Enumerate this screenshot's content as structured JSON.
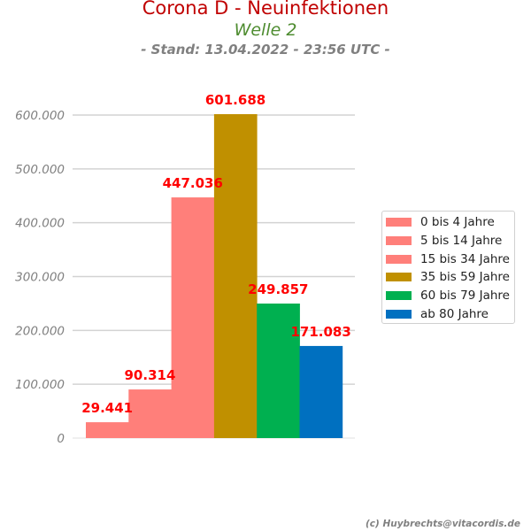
{
  "header": {
    "title": "Corona D - Neuinfektionen",
    "subtitle": "Welle 2",
    "stand": "- Stand: 13.04.2022 - 23:56 UTC -"
  },
  "chart_data": {
    "type": "bar",
    "categories": [
      "0 bis 4 Jahre",
      "5 bis 14 Jahre",
      "15 bis 34 Jahre",
      "35 bis 59 Jahre",
      "60 bis 79 Jahre",
      "ab 80 Jahre"
    ],
    "values": [
      29441,
      90314,
      447036,
      601688,
      249857,
      171083
    ],
    "value_labels": [
      "29.441",
      "90.314",
      "447.036",
      "601.688",
      "249.857",
      "171.083"
    ],
    "colors": [
      "#ff7f7a",
      "#ff7f7a",
      "#ff7f7a",
      "#c09000",
      "#00b050",
      "#0070c0"
    ],
    "ylim": [
      0,
      600000
    ],
    "yticks": [
      0,
      100000,
      200000,
      300000,
      400000,
      500000,
      600000
    ],
    "ytick_labels": [
      "0",
      "100.000",
      "200.000",
      "300.000",
      "400.000",
      "500.000",
      "600.000"
    ],
    "grid": true,
    "legend_position": "right",
    "label_color": "#ff0000"
  },
  "footer": "(c) Huybrechts@vitacordis.de"
}
